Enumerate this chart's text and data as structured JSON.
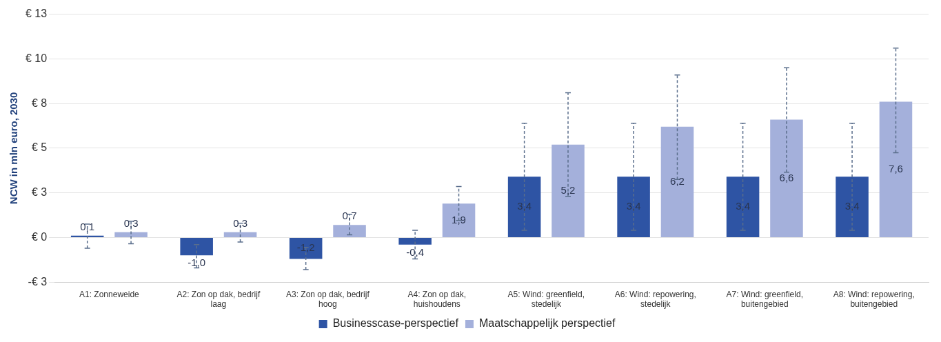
{
  "chart_data": {
    "type": "bar",
    "ylabel": "NCW in mln euro, 2030",
    "categories": [
      "A1: Zonneweide",
      "A2: Zon op dak, bedrijf laag",
      "A3: Zon op dak, bedrijf hoog",
      "A4: Zon op dak, huishoudens",
      "A5: Wind: greenfield, stedelijk",
      "A6: Wind: repowering, stedelijk",
      "A7: Wind: greenfield, buitengebied",
      "A8: Wind: repowering, buitengebied"
    ],
    "series": [
      {
        "name": "Businesscase-perspectief",
        "color": "#2e54a4",
        "values": [
          0.1,
          -1.0,
          -1.2,
          -0.4,
          3.4,
          3.4,
          3.4,
          3.4
        ],
        "value_labels": [
          "0,1",
          "-1,0",
          "-1,2",
          "-0,4",
          "3,4",
          "3,4",
          "3,4",
          "3,4"
        ],
        "errors": [
          [
            -0.6,
            0.75
          ],
          [
            -1.7,
            -0.4
          ],
          [
            -1.8,
            -0.55
          ],
          [
            -1.2,
            0.4
          ],
          [
            0.4,
            6.4
          ],
          [
            0.4,
            6.4
          ],
          [
            0.4,
            6.4
          ],
          [
            0.4,
            6.4
          ]
        ]
      },
      {
        "name": "Maatschappelijk perspectief",
        "color": "#a4b0db",
        "values": [
          0.3,
          0.3,
          0.7,
          1.9,
          5.2,
          6.2,
          6.6,
          7.6
        ],
        "value_labels": [
          "0,3",
          "0,3",
          "0,7",
          "1,9",
          "5,2",
          "6,2",
          "6,6",
          "7,6"
        ],
        "errors": [
          [
            -0.35,
            0.9
          ],
          [
            -0.25,
            0.8
          ],
          [
            0.15,
            1.3
          ],
          [
            0.95,
            2.85
          ],
          [
            2.3,
            8.1
          ],
          [
            3.25,
            9.1
          ],
          [
            3.65,
            9.5
          ],
          [
            4.75,
            10.6
          ]
        ]
      }
    ],
    "ylim": [
      -2.5,
      12.5
    ],
    "yticks": [
      {
        "value": -2.5,
        "label": "-€ 3"
      },
      {
        "value": 0,
        "label": "€ 0"
      },
      {
        "value": 2.5,
        "label": "€ 3"
      },
      {
        "value": 5,
        "label": "€ 5"
      },
      {
        "value": 7.5,
        "label": "€ 8"
      },
      {
        "value": 10,
        "label": "€ 10"
      },
      {
        "value": 12.5,
        "label": "€ 13"
      }
    ],
    "grid": "y",
    "legend": "bottom"
  }
}
